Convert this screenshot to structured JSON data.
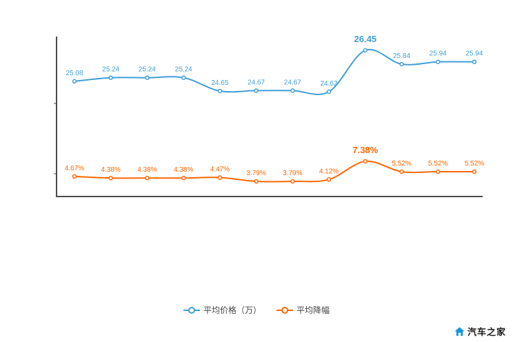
{
  "chart_data": {
    "type": "line",
    "title": "",
    "grid": false,
    "legend_position": "bottom",
    "x_count": 12,
    "series": [
      {
        "name": "平均价格（万）",
        "color": "#3f9fd8",
        "values": [
          25.08,
          25.24,
          25.24,
          25.24,
          24.65,
          24.67,
          24.67,
          24.62,
          26.45,
          25.84,
          25.94,
          25.94
        ],
        "labels": [
          "25.08",
          "25.24",
          "25.24",
          "25.24",
          "24.65",
          "24.67",
          "24.67",
          "24.62",
          "26.45",
          "25.84",
          "25.94",
          "25.94"
        ],
        "peak_index": 8
      },
      {
        "name": "平均降幅",
        "color": "#ff6600",
        "values": [
          4.67,
          4.38,
          4.38,
          4.38,
          4.47,
          3.79,
          3.79,
          4.12,
          7.38,
          5.52,
          5.52,
          5.52
        ],
        "labels": [
          "4.67%",
          "4.38%",
          "4.38%",
          "4.38%",
          "4.47%",
          "3.79%",
          "3.79%",
          "4.12%",
          "7.38%",
          "5.52%",
          "5.52%",
          "5.52%"
        ],
        "peak_index": 8
      }
    ]
  },
  "watermark": {
    "brand": "汽车之家",
    "icon": "home-icon",
    "icon_color": "#1296db"
  }
}
